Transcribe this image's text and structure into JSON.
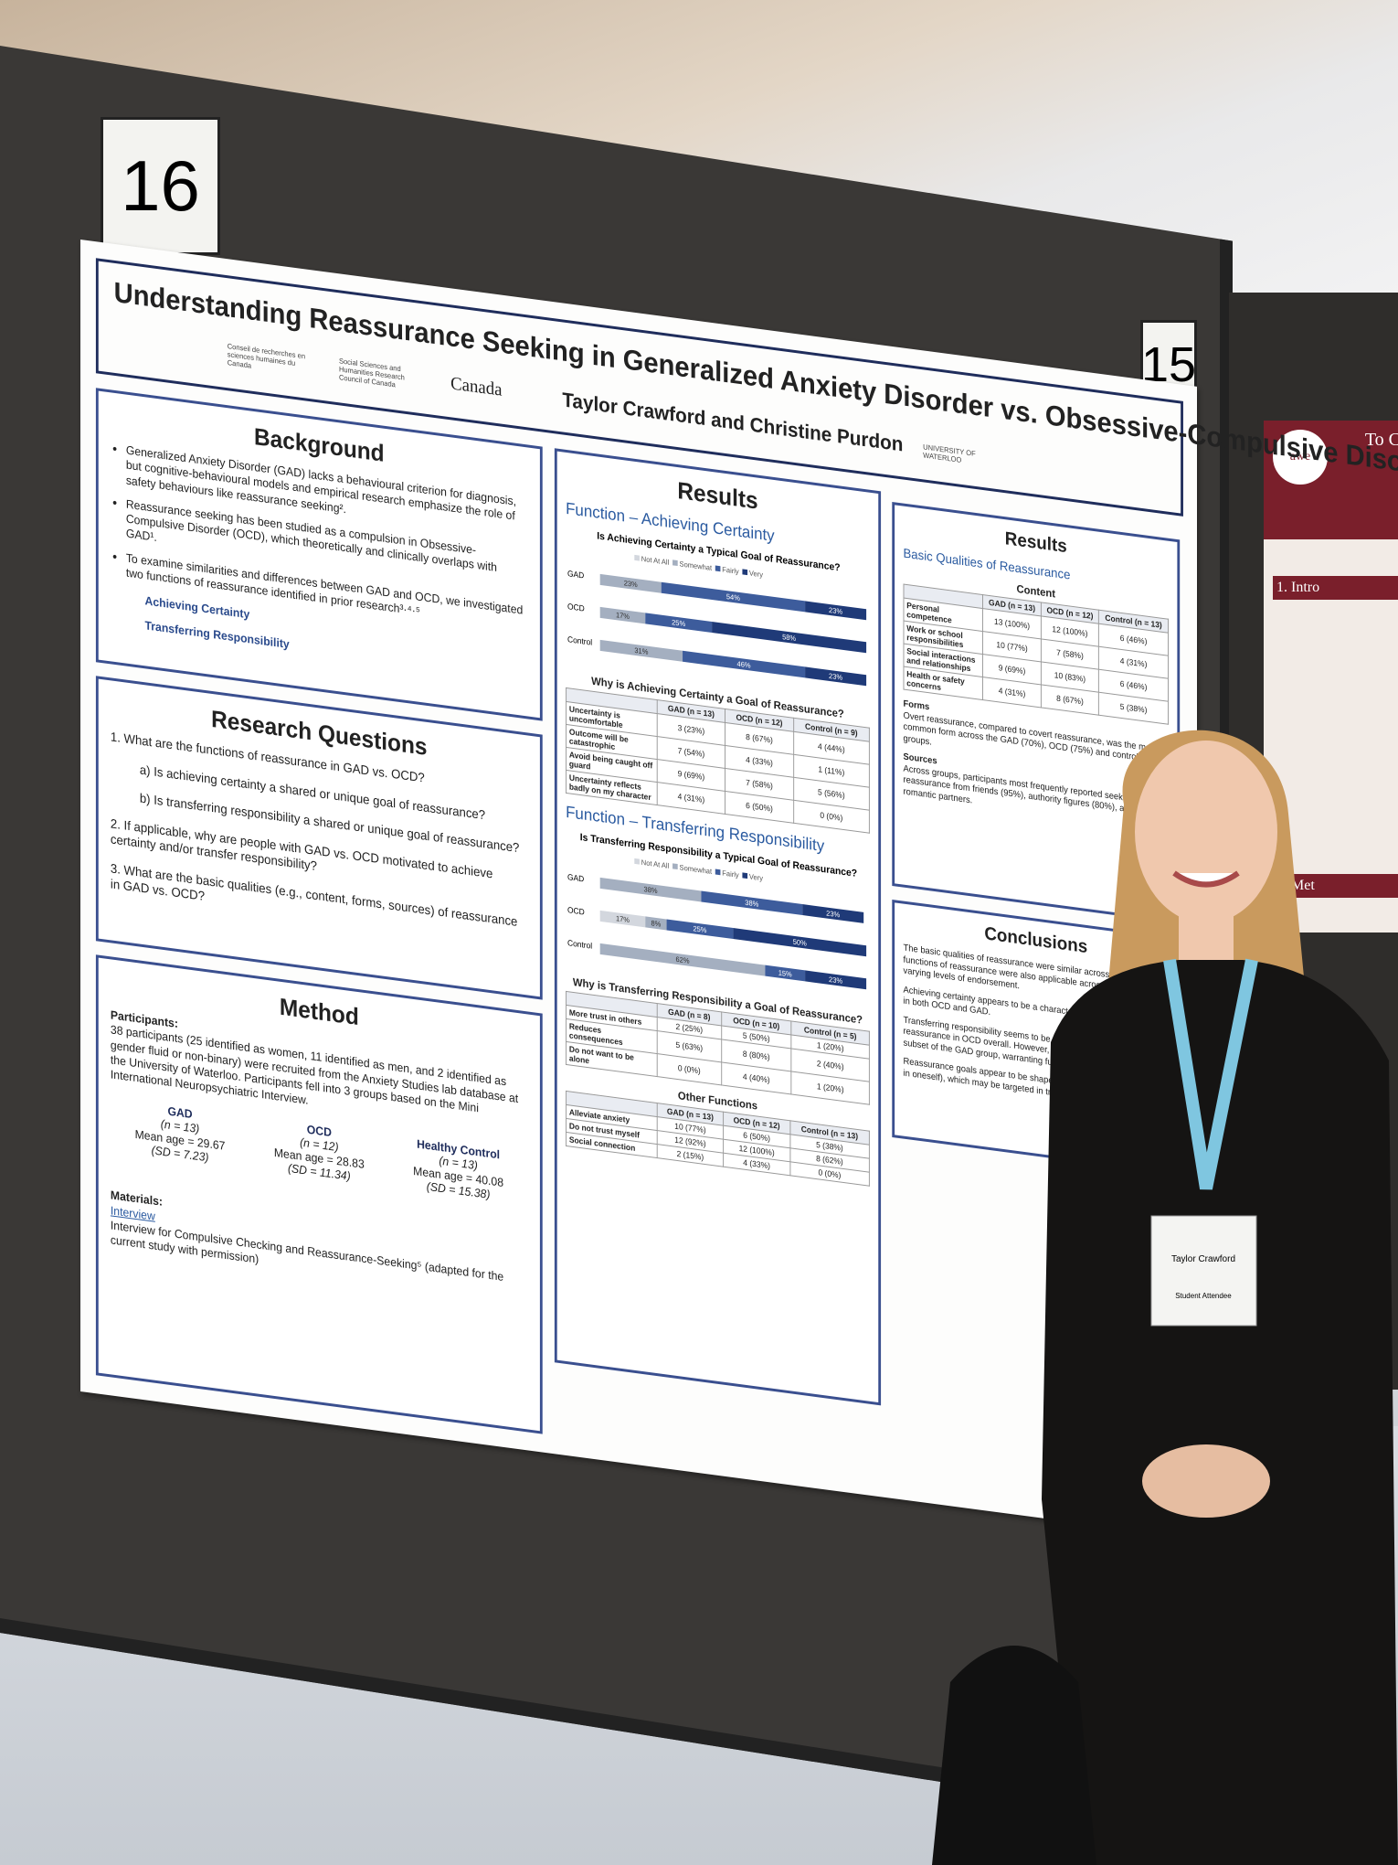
{
  "board_number": "16",
  "neighbor_number": "15",
  "neighbor_poster": {
    "title": "To C",
    "logo": "awe",
    "section1": "1. Intro",
    "section2": "2. Met"
  },
  "badge": {
    "name": "Taylor Crawford",
    "role": "Student Attendee"
  },
  "poster": {
    "title": "Understanding Reassurance Seeking in Generalized Anxiety Disorder vs. Obsessive-Compulsive Disorder",
    "authors": "Taylor Crawford and Christine Purdon",
    "logos": [
      "Conseil de recherches en sciences humaines du Canada",
      "Social Sciences and Humanities Research Council of Canada",
      "Canada",
      "UNIVERSITY OF WATERLOO"
    ],
    "background": {
      "heading": "Background",
      "bullets": [
        "Generalized Anxiety Disorder (GAD) lacks a behavioural criterion for diagnosis, but cognitive-behavioural models and empirical research emphasize the role of safety behaviours like reassurance seeking².",
        "Reassurance seeking has been studied as a compulsion in Obsessive-Compulsive Disorder (OCD), which theoretically and clinically overlaps with GAD¹.",
        "To examine similarities and differences between GAD and OCD, we investigated two functions of reassurance identified in prior research³·⁴·⁵"
      ],
      "functions": [
        "Achieving Certainty",
        "Transferring Responsibility"
      ]
    },
    "research_questions": {
      "heading": "Research Questions",
      "items": [
        "1. What are the functions of reassurance in GAD vs. OCD?",
        "a) Is achieving certainty a shared or unique goal of reassurance?",
        "b) Is transferring responsibility a shared or unique goal of reassurance?",
        "2. If applicable, why are people with GAD vs. OCD motivated to achieve certainty and/or transfer responsibility?",
        "3. What are the basic qualities (e.g., content, forms, sources) of reassurance in GAD vs. OCD?"
      ]
    },
    "method": {
      "heading": "Method",
      "participants_label": "Participants:",
      "participants": "38 participants (25 identified as women, 11 identified as men, and 2 identified as gender fluid or non-binary) were recruited from the Anxiety Studies lab database at the University of Waterloo. Participants fell into 3 groups based on the Mini International Neuropsychiatric Interview.",
      "groups": [
        {
          "name": "GAD",
          "n": "(n = 13)",
          "age": "Mean age = 29.67",
          "sd": "(SD = 7.23)"
        },
        {
          "name": "OCD",
          "n": "(n = 12)",
          "age": "Mean age = 28.83",
          "sd": "(SD = 11.34)"
        },
        {
          "name": "Healthy Control",
          "n": "(n = 13)",
          "age": "Mean age = 40.08",
          "sd": "(SD = 15.38)"
        }
      ],
      "materials_label": "Materials:",
      "materials_link": "Interview",
      "materials": "Interview for Compulsive Checking and Reassurance-Seeking⁵ (adapted for the current study with permission)"
    },
    "results": {
      "heading": "Results",
      "certainty_heading": "Function – Achieving Certainty",
      "certainty_table": {
        "title": "Why is Achieving Certainty a Goal of Reassurance?",
        "header": [
          "GAD (n = 13)",
          "OCD (n = 12)",
          "Control (n = 9)"
        ],
        "rows": [
          [
            "Uncertainty is uncomfortable",
            "3 (23%)",
            "8 (67%)",
            "4 (44%)"
          ],
          [
            "Outcome will be catastrophic",
            "7 (54%)",
            "4 (33%)",
            "1 (11%)"
          ],
          [
            "Avoid being caught off guard",
            "9 (69%)",
            "7 (58%)",
            "5 (56%)"
          ],
          [
            "Uncertainty reflects badly on my character",
            "4 (31%)",
            "6 (50%)",
            "0 (0%)"
          ]
        ]
      },
      "transfer_heading": "Function – Transferring Responsibility",
      "transfer_table": {
        "title": "Why is Transferring Responsibility a Goal of Reassurance?",
        "header": [
          "GAD (n = 8)",
          "OCD (n = 10)",
          "Control (n = 5)"
        ],
        "rows": [
          [
            "More trust in others",
            "2 (25%)",
            "5 (50%)",
            "1 (20%)"
          ],
          [
            "Reduces consequences",
            "5 (63%)",
            "8 (80%)",
            "2 (40%)"
          ],
          [
            "Do not want to be alone",
            "0 (0%)",
            "4 (40%)",
            "1 (20%)"
          ]
        ]
      },
      "other_table": {
        "title": "Other Functions",
        "header": [
          "GAD (n = 13)",
          "OCD (n = 12)",
          "Control (n = 13)"
        ],
        "rows": [
          [
            "Alleviate anxiety",
            "10 (77%)",
            "6 (50%)",
            "5 (38%)"
          ],
          [
            "Do not trust myself",
            "12 (92%)",
            "12 (100%)",
            "8 (62%)"
          ],
          [
            "Social connection",
            "2 (15%)",
            "4 (33%)",
            "0 (0%)"
          ]
        ]
      }
    },
    "qualities": {
      "heading": "Results",
      "subheading": "Basic Qualities of Reassurance",
      "content_table": {
        "title": "Content",
        "header": [
          "GAD (n = 13)",
          "OCD (n = 12)",
          "Control (n = 13)"
        ],
        "rows": [
          [
            "Personal competence",
            "13 (100%)",
            "12 (100%)",
            "6 (46%)"
          ],
          [
            "Work or school responsibilities",
            "10 (77%)",
            "7 (58%)",
            "4 (31%)"
          ],
          [
            "Social interactions and relationships",
            "9 (69%)",
            "10 (83%)",
            "6 (46%)"
          ],
          [
            "Health or safety concerns",
            "4 (31%)",
            "8 (67%)",
            "5 (38%)"
          ]
        ]
      },
      "forms_label": "Forms",
      "forms": "Overt reassurance, compared to covert reassurance, was the most common form across the GAD (70%), OCD (75%) and control (85%) groups.",
      "sources_label": "Sources",
      "sources": "Across groups, participants most frequently reported seeking reassurance from friends (95%), authority figures (80%), and romantic partners."
    },
    "conclusions": {
      "heading": "Conclusions",
      "paragraphs": [
        "The basic qualities of reassurance were similar across groups; functions of reassurance were also applicable across groups at varying levels of endorsement.",
        "Achieving certainty appears to be a characteristic goal of reassurance in both OCD and GAD.",
        "Transferring responsibility seems to be a more characteristic goal of reassurance in OCD overall. However, it may also be a goal by a subset of the GAD group, warranting further case conceptualization.",
        "Reassurance goals appear to be shaped by beliefs (e.g., lack of trust in oneself), which may be targeted in treatment."
      ]
    }
  },
  "chart_data": [
    {
      "type": "bar",
      "stacked": true,
      "orientation": "horizontal",
      "title": "Is Achieving Certainty a Typical Goal of Reassurance?",
      "categories": [
        "GAD",
        "OCD",
        "Control"
      ],
      "xlim": [
        0,
        100
      ],
      "series": [
        {
          "name": "Not At All",
          "color": "#d3d7de",
          "values": [
            null,
            null,
            null
          ],
          "value_labels": [
            null,
            null,
            null
          ]
        },
        {
          "name": "Somewhat",
          "color": "#a4afc0",
          "values": [
            23,
            17,
            31
          ],
          "value_labels": [
            "23%",
            "17%",
            "31%"
          ]
        },
        {
          "name": "Fairly",
          "color": "#3d5c9c",
          "values": [
            54,
            25,
            46
          ],
          "value_labels": [
            "54%",
            "25%",
            "46%"
          ]
        },
        {
          "name": "Very",
          "color": "#1f3a78",
          "values": [
            23,
            58,
            23
          ],
          "value_labels": [
            "23%",
            "58%",
            "23%"
          ]
        }
      ]
    },
    {
      "type": "bar",
      "stacked": true,
      "orientation": "horizontal",
      "title": "Is Transferring Responsibility a Typical Goal of Reassurance?",
      "categories": [
        "GAD",
        "OCD",
        "Control"
      ],
      "xlim": [
        0,
        100
      ],
      "series": [
        {
          "name": "Not At All",
          "color": "#d3d7de",
          "values": [
            null,
            17,
            null
          ],
          "value_labels": [
            null,
            "17%",
            null
          ]
        },
        {
          "name": "Somewhat",
          "color": "#a4afc0",
          "values": [
            38,
            8,
            62
          ],
          "value_labels": [
            "38%",
            "8%",
            "62%"
          ]
        },
        {
          "name": "Fairly",
          "color": "#3d5c9c",
          "values": [
            38,
            25,
            15
          ],
          "value_labels": [
            "38%",
            "25%",
            "15%"
          ]
        },
        {
          "name": "Very",
          "color": "#1f3a78",
          "values": [
            23,
            50,
            23
          ],
          "value_labels": [
            "23%",
            "50%",
            "23%"
          ]
        }
      ]
    }
  ]
}
